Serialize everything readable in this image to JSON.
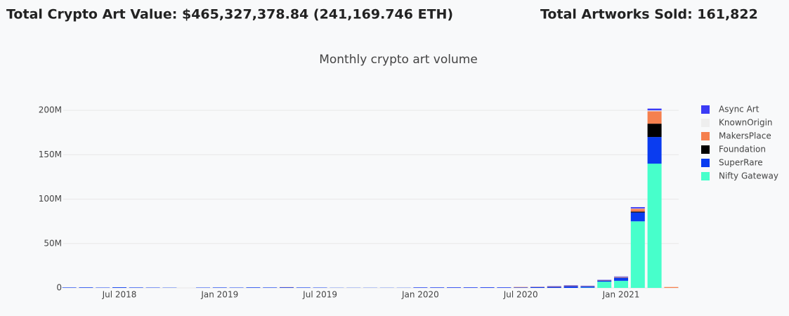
{
  "header": {
    "left": "Total Crypto Art Value: $465,327,378.84 (241,169.746 ETH)",
    "right": "Total Artworks Sold: 161,822"
  },
  "chart_data": {
    "type": "stacked-bar",
    "title": "Monthly crypto art volume",
    "x": [
      "2018-04",
      "2018-05",
      "2018-06",
      "2018-07",
      "2018-08",
      "2018-09",
      "2018-10",
      "2018-11",
      "2018-12",
      "2019-01",
      "2019-02",
      "2019-03",
      "2019-04",
      "2019-05",
      "2019-06",
      "2019-07",
      "2019-08",
      "2019-09",
      "2019-10",
      "2019-11",
      "2019-12",
      "2020-01",
      "2020-02",
      "2020-03",
      "2020-04",
      "2020-05",
      "2020-06",
      "2020-07",
      "2020-08",
      "2020-09",
      "2020-10",
      "2020-11",
      "2020-12",
      "2021-01",
      "2021-02",
      "2021-03",
      "2021-04"
    ],
    "series": [
      {
        "name": "Nifty Gateway",
        "color": "#47ffcb",
        "values": [
          0,
          0,
          0,
          0,
          0,
          0,
          0,
          0,
          0,
          0,
          0,
          0,
          0,
          0,
          0,
          0,
          0,
          0,
          0,
          0,
          0,
          0,
          0,
          0,
          0,
          0,
          0,
          0,
          0,
          0,
          0,
          300000,
          7000000,
          8000000,
          75000000,
          140000000,
          0
        ]
      },
      {
        "name": "SuperRare",
        "color": "#0a3cf0",
        "values": [
          500000,
          600000,
          400000,
          700000,
          500000,
          400000,
          300000,
          0,
          400000,
          500000,
          400000,
          600000,
          500000,
          700000,
          500000,
          400000,
          200000,
          200000,
          200000,
          200000,
          200000,
          400000,
          400000,
          500000,
          500000,
          600000,
          500000,
          600000,
          800000,
          1200000,
          2000000,
          1500000,
          1300000,
          3500000,
          10000000,
          30000000,
          0
        ]
      },
      {
        "name": "Foundation",
        "color": "#000000",
        "values": [
          0,
          0,
          0,
          0,
          0,
          0,
          0,
          0,
          0,
          0,
          0,
          0,
          0,
          0,
          0,
          0,
          0,
          0,
          0,
          0,
          0,
          0,
          0,
          0,
          0,
          0,
          0,
          0,
          0,
          0,
          0,
          0,
          0,
          0,
          1000000,
          15000000,
          0
        ]
      },
      {
        "name": "MakersPlace",
        "color": "#f5804e",
        "values": [
          0,
          0,
          0,
          0,
          0,
          0,
          0,
          0,
          0,
          0,
          0,
          0,
          0,
          200000,
          0,
          0,
          0,
          0,
          0,
          0,
          0,
          0,
          0,
          0,
          0,
          0,
          0,
          500000,
          300000,
          500000,
          600000,
          400000,
          500000,
          700000,
          3000000,
          14000000,
          1000000
        ]
      },
      {
        "name": "KnownOrigin",
        "color": "#eeeeee",
        "values": [
          0,
          0,
          0,
          0,
          0,
          0,
          0,
          0,
          0,
          0,
          0,
          0,
          0,
          0,
          0,
          0,
          0,
          0,
          0,
          0,
          0,
          0,
          0,
          0,
          0,
          0,
          0,
          100000,
          0,
          0,
          0,
          0,
          200000,
          200000,
          500000,
          1000000,
          0
        ]
      },
      {
        "name": "Async Art",
        "color": "#3b3bf5",
        "values": [
          0,
          0,
          0,
          0,
          0,
          0,
          0,
          0,
          0,
          0,
          0,
          0,
          0,
          0,
          0,
          0,
          0,
          0,
          0,
          0,
          0,
          200000,
          200000,
          200000,
          200000,
          200000,
          200000,
          0,
          200000,
          300000,
          400000,
          300000,
          300000,
          500000,
          1500000,
          2000000,
          0
        ]
      }
    ],
    "ylim": [
      0,
      212000000
    ],
    "yticks": [
      0,
      {
        "value": 50000000,
        "label": "50M"
      },
      {
        "value": 100000000,
        "label": "100M"
      },
      {
        "value": 150000000,
        "label": "150M"
      },
      {
        "value": 200000000,
        "label": "200M"
      }
    ],
    "xticks": [
      {
        "value": "2018-07",
        "label": "Jul 2018"
      },
      {
        "value": "2019-01",
        "label": "Jan 2019"
      },
      {
        "value": "2019-07",
        "label": "Jul 2019"
      },
      {
        "value": "2020-01",
        "label": "Jan 2020"
      },
      {
        "value": "2020-07",
        "label": "Jul 2020"
      },
      {
        "value": "2021-01",
        "label": "Jan 2021"
      }
    ],
    "grid": true,
    "legend": "right"
  }
}
